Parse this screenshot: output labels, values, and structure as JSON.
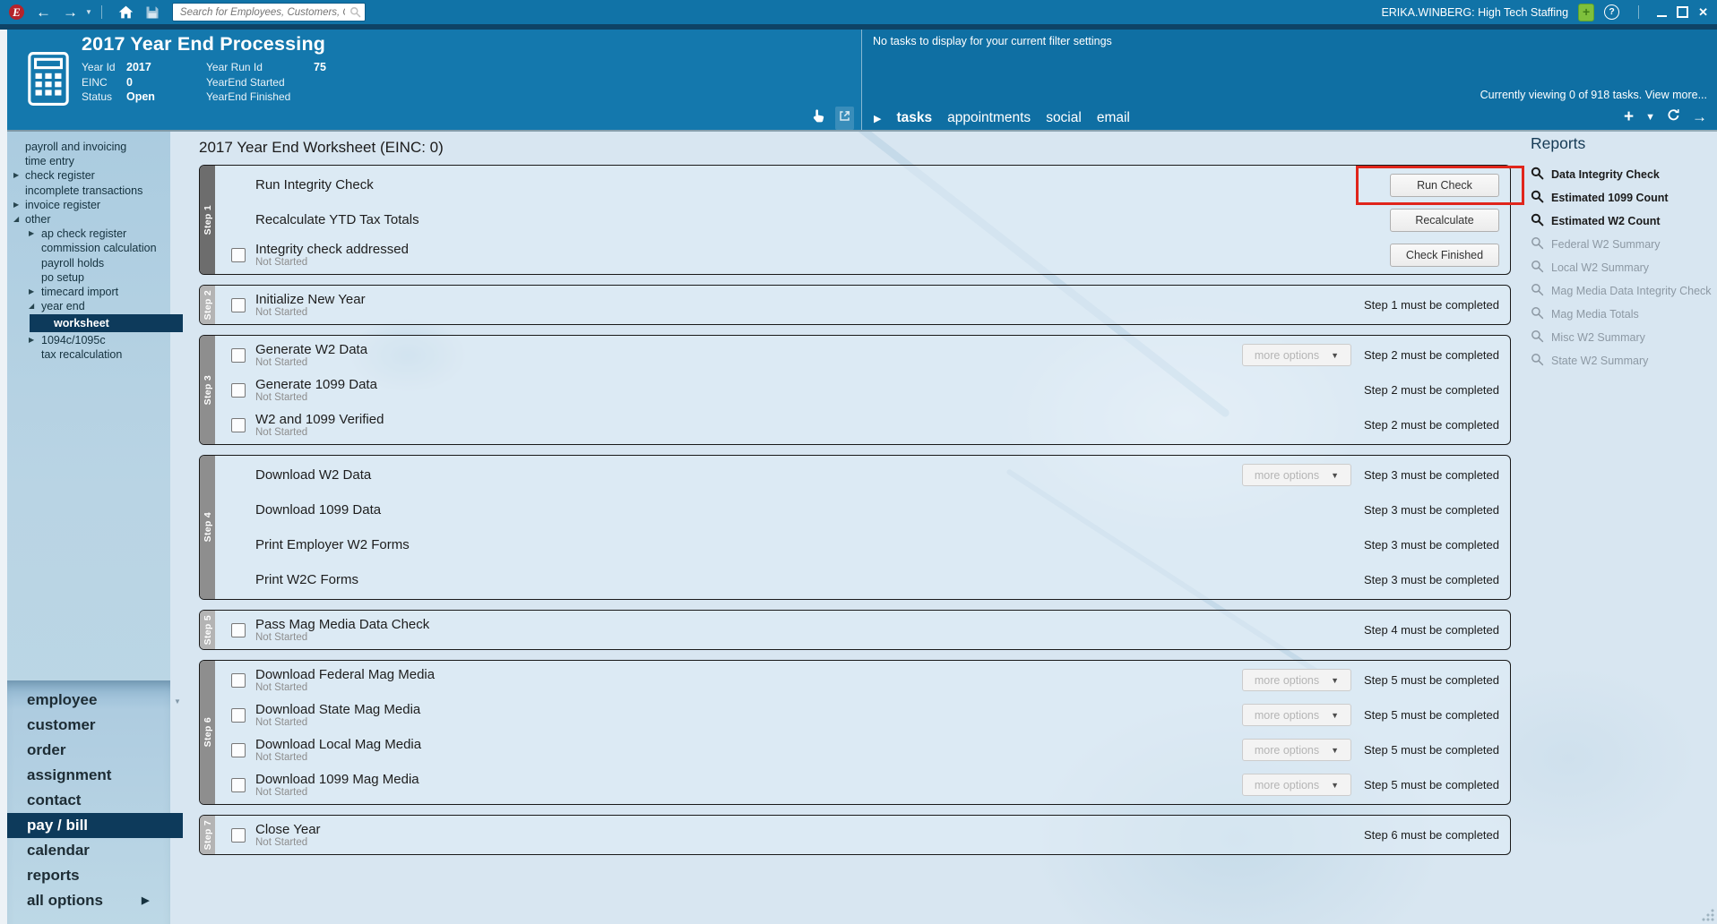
{
  "topbar": {
    "logo_letter": "E",
    "search_placeholder": "Search for Employees, Customers, Orders, etc.",
    "user": "ERIKA.WINBERG: High Tech Staffing"
  },
  "header": {
    "title": "2017 Year End Processing",
    "fields": [
      {
        "label": "Year Id",
        "value": "2017"
      },
      {
        "label": "EINC",
        "value": "0"
      },
      {
        "label": "Status",
        "value": "Open"
      },
      {
        "label": "Year Run Id",
        "value": "75"
      },
      {
        "label": "YearEnd Started",
        "value": ""
      },
      {
        "label": "YearEnd Finished",
        "value": ""
      }
    ]
  },
  "tasks_panel": {
    "empty_message": "No tasks to display for your current filter settings",
    "viewing_text": "Currently viewing 0 of 918 tasks. View more...",
    "tabs": [
      {
        "label": "tasks",
        "active": true
      },
      {
        "label": "appointments",
        "active": false
      },
      {
        "label": "social",
        "active": false
      },
      {
        "label": "email",
        "active": false
      }
    ]
  },
  "sidebar": {
    "tree": [
      {
        "label": "payroll and invoicing",
        "level": 0,
        "state": "none",
        "selected": false
      },
      {
        "label": "time entry",
        "level": 0,
        "state": "none",
        "selected": false
      },
      {
        "label": "check register",
        "level": 0,
        "state": "collapsed",
        "selected": false
      },
      {
        "label": "incomplete transactions",
        "level": 0,
        "state": "none",
        "selected": false
      },
      {
        "label": "invoice register",
        "level": 0,
        "state": "collapsed",
        "selected": false
      },
      {
        "label": "other",
        "level": 0,
        "state": "expanded",
        "selected": false
      },
      {
        "label": "ap check register",
        "level": 1,
        "state": "collapsed",
        "selected": false
      },
      {
        "label": "commission calculation",
        "level": 1,
        "state": "none",
        "selected": false
      },
      {
        "label": "payroll holds",
        "level": 1,
        "state": "none",
        "selected": false
      },
      {
        "label": "po setup",
        "level": 1,
        "state": "none",
        "selected": false
      },
      {
        "label": "timecard import",
        "level": 1,
        "state": "collapsed",
        "selected": false
      },
      {
        "label": "year end",
        "level": 1,
        "state": "expanded",
        "selected": false
      },
      {
        "label": "worksheet",
        "level": 2,
        "state": "none",
        "selected": true
      },
      {
        "label": "1094c/1095c",
        "level": 1,
        "state": "collapsed",
        "selected": false
      },
      {
        "label": "tax recalculation",
        "level": 1,
        "state": "none",
        "selected": false
      }
    ],
    "nav": [
      {
        "label": "employee",
        "selected": false,
        "arrow": false
      },
      {
        "label": "customer",
        "selected": false,
        "arrow": false
      },
      {
        "label": "order",
        "selected": false,
        "arrow": false
      },
      {
        "label": "assignment",
        "selected": false,
        "arrow": false
      },
      {
        "label": "contact",
        "selected": false,
        "arrow": false
      },
      {
        "label": "pay / bill",
        "selected": true,
        "arrow": false
      },
      {
        "label": "calendar",
        "selected": false,
        "arrow": false
      },
      {
        "label": "reports",
        "selected": false,
        "arrow": false
      },
      {
        "label": "all options",
        "selected": false,
        "arrow": true
      }
    ]
  },
  "main": {
    "title": "2017 Year End Worksheet (EINC: 0)",
    "steps": [
      {
        "tab": "Step 1",
        "tone": "dark",
        "rows": [
          {
            "title": "Run Integrity Check",
            "checkbox": false,
            "status": "",
            "more_options": "",
            "requirement": "",
            "button": "Run Check",
            "highlight": true
          },
          {
            "title": "Recalculate YTD Tax Totals",
            "checkbox": false,
            "status": "",
            "more_options": "",
            "requirement": "",
            "button": "Recalculate",
            "highlight": false
          },
          {
            "title": "Integrity check addressed",
            "checkbox": true,
            "status": "Not Started",
            "more_options": "",
            "requirement": "",
            "button": "Check Finished",
            "highlight": false
          }
        ]
      },
      {
        "tab": "Step 2",
        "tone": "light",
        "rows": [
          {
            "title": "Initialize New Year",
            "checkbox": true,
            "status": "Not Started",
            "more_options": "",
            "requirement": "Step 1 must be completed",
            "button": "",
            "highlight": false
          }
        ]
      },
      {
        "tab": "Step 3",
        "tone": "mid",
        "rows": [
          {
            "title": "Generate W2 Data",
            "checkbox": true,
            "status": "Not Started",
            "more_options": "more options",
            "requirement": "Step 2 must be completed",
            "button": "",
            "highlight": false
          },
          {
            "title": "Generate 1099 Data",
            "checkbox": true,
            "status": "Not Started",
            "more_options": "",
            "requirement": "Step 2 must be completed",
            "button": "",
            "highlight": false
          },
          {
            "title": "W2 and 1099 Verified",
            "checkbox": true,
            "status": "Not Started",
            "more_options": "",
            "requirement": "Step 2 must be completed",
            "button": "",
            "highlight": false
          }
        ]
      },
      {
        "tab": "Step 4",
        "tone": "mid",
        "rows": [
          {
            "title": "Download W2 Data",
            "checkbox": false,
            "status": "",
            "more_options": "more options",
            "requirement": "Step 3 must be completed",
            "button": "",
            "highlight": false
          },
          {
            "title": "Download 1099 Data",
            "checkbox": false,
            "status": "",
            "more_options": "",
            "requirement": "Step 3 must be completed",
            "button": "",
            "highlight": false
          },
          {
            "title": "Print Employer W2 Forms",
            "checkbox": false,
            "status": "",
            "more_options": "",
            "requirement": "Step 3 must be completed",
            "button": "",
            "highlight": false
          },
          {
            "title": "Print W2C Forms",
            "checkbox": false,
            "status": "",
            "more_options": "",
            "requirement": "Step 3 must be completed",
            "button": "",
            "highlight": false
          }
        ]
      },
      {
        "tab": "Step 5",
        "tone": "light",
        "rows": [
          {
            "title": "Pass Mag Media Data Check",
            "checkbox": true,
            "status": "Not Started",
            "more_options": "",
            "requirement": "Step 4 must be completed",
            "button": "",
            "highlight": false
          }
        ]
      },
      {
        "tab": "Step 6",
        "tone": "mid",
        "rows": [
          {
            "title": "Download Federal Mag Media",
            "checkbox": true,
            "status": "Not Started",
            "more_options": "more options",
            "requirement": "Step 5 must be completed",
            "button": "",
            "highlight": false
          },
          {
            "title": "Download State Mag Media",
            "checkbox": true,
            "status": "Not Started",
            "more_options": "more options",
            "requirement": "Step 5 must be completed",
            "button": "",
            "highlight": false
          },
          {
            "title": "Download Local Mag Media",
            "checkbox": true,
            "status": "Not Started",
            "more_options": "more options",
            "requirement": "Step 5 must be completed",
            "button": "",
            "highlight": false
          },
          {
            "title": "Download 1099 Mag Media",
            "checkbox": true,
            "status": "Not Started",
            "more_options": "more options",
            "requirement": "Step 5 must be completed",
            "button": "",
            "highlight": false
          }
        ]
      },
      {
        "tab": "Step 7",
        "tone": "light",
        "rows": [
          {
            "title": "Close Year",
            "checkbox": true,
            "status": "Not Started",
            "more_options": "",
            "requirement": "Step 6 must be completed",
            "button": "",
            "highlight": false
          }
        ]
      }
    ]
  },
  "reports": {
    "title": "Reports",
    "items": [
      {
        "label": "Data Integrity Check",
        "enabled": true
      },
      {
        "label": "Estimated 1099 Count",
        "enabled": true
      },
      {
        "label": "Estimated W2 Count",
        "enabled": true
      },
      {
        "label": "Federal W2 Summary",
        "enabled": false
      },
      {
        "label": "Local W2 Summary",
        "enabled": false
      },
      {
        "label": "Mag Media Data Integrity Check",
        "enabled": false
      },
      {
        "label": "Mag Media Totals",
        "enabled": false
      },
      {
        "label": "Misc W2 Summary",
        "enabled": false
      },
      {
        "label": "State W2 Summary",
        "enabled": false
      }
    ]
  },
  "colors": {
    "accent_red": "#e0251b",
    "header_blue": "#1478ad",
    "tasks_panel_blue": "#0f6fa3",
    "selected_navy": "#0d3a5b",
    "addon_green": "#7ec03c"
  }
}
